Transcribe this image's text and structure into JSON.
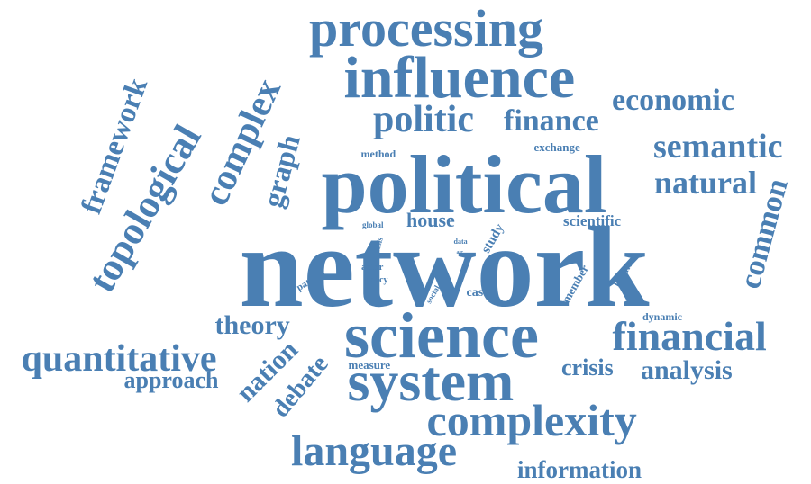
{
  "words": [
    {
      "text": "network",
      "weight": 120
    },
    {
      "text": "political",
      "weight": 95
    },
    {
      "text": "science",
      "weight": 80
    },
    {
      "text": "influence",
      "weight": 70
    },
    {
      "text": "processing",
      "weight": 62
    },
    {
      "text": "system",
      "weight": 62
    },
    {
      "text": "complexity",
      "weight": 54
    },
    {
      "text": "language",
      "weight": 50
    },
    {
      "text": "financial",
      "weight": 50
    },
    {
      "text": "quantitative",
      "weight": 44
    },
    {
      "text": "politic",
      "weight": 45
    },
    {
      "text": "topological",
      "weight": 45
    },
    {
      "text": "complex",
      "weight": 44
    },
    {
      "text": "semantic",
      "weight": 40
    },
    {
      "text": "natural",
      "weight": 38
    },
    {
      "text": "economic",
      "weight": 34
    },
    {
      "text": "finance",
      "weight": 34
    },
    {
      "text": "framework",
      "weight": 34
    },
    {
      "text": "common",
      "weight": 34
    },
    {
      "text": "analysis",
      "weight": 30
    },
    {
      "text": "information",
      "weight": 28
    },
    {
      "text": "graph",
      "weight": 32
    },
    {
      "text": "theory",
      "weight": 30
    },
    {
      "text": "nation",
      "weight": 30
    },
    {
      "text": "debate",
      "weight": 28
    },
    {
      "text": "approach",
      "weight": 26
    },
    {
      "text": "crisis",
      "weight": 26
    },
    {
      "text": "house",
      "weight": 22
    },
    {
      "text": "scientific",
      "weight": 17
    },
    {
      "text": "study",
      "weight": 15
    },
    {
      "text": "method",
      "weight": 12
    },
    {
      "text": "exchange",
      "weight": 13
    },
    {
      "text": "dynamic",
      "weight": 12
    },
    {
      "text": "case",
      "weight": 14
    },
    {
      "text": "member",
      "weight": 13
    },
    {
      "text": "latent",
      "weight": 12
    },
    {
      "text": "measure",
      "weight": 13
    },
    {
      "text": "pattern",
      "weight": 11
    },
    {
      "text": "actor",
      "weight": 11
    },
    {
      "text": "policy",
      "weight": 10
    },
    {
      "text": "social",
      "weight": 9
    },
    {
      "text": "thesis",
      "weight": 9
    },
    {
      "text": "global",
      "weight": 9
    },
    {
      "text": "data",
      "weight": 8
    },
    {
      "text": "air",
      "weight": 7
    }
  ],
  "colors": {
    "word": "#4a7fb3",
    "background": "#ffffff"
  }
}
